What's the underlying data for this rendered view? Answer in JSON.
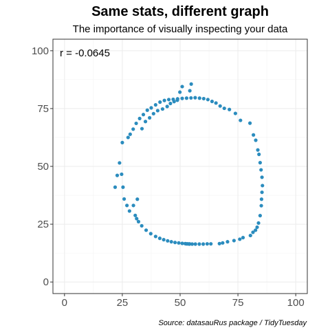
{
  "title": "Same stats, different graph",
  "subtitle": "The importance of visually inspecting your data",
  "caption": "Source: datasauRus package / TidyTuesday",
  "annotation": "r = -0.0645",
  "colors": {
    "point": "#2b8cbe",
    "annotation_text": "#000000"
  },
  "chart_data": {
    "type": "scatter",
    "title": "Same stats, different graph",
    "subtitle": "The importance of visually inspecting your data",
    "xlabel": "",
    "ylabel": "",
    "xlim": [
      -5,
      105
    ],
    "ylim": [
      -5,
      105
    ],
    "x_ticks": [
      0,
      25,
      50,
      75,
      100
    ],
    "y_ticks": [
      0,
      25,
      50,
      75,
      100
    ],
    "grid": true,
    "legend": "none",
    "series": [
      {
        "x": [
          53.4,
          52.2,
          50.9,
          49.4,
          47.8,
          46.2,
          44.6,
          42.9,
          41.2,
          39.4,
          37.3,
          35.3,
          33.4,
          32.0,
          31.2,
          30.6,
          27.0,
          25.8,
          25.3,
          24.7,
          23.8,
          22.8,
          21.9,
          25.0,
          27.5,
          28.4,
          29.7,
          31.0,
          32.5,
          34.1,
          35.8,
          37.5,
          39.4,
          41.3,
          43.2,
          45.1,
          47.0,
          48.9,
          50.9,
          52.8,
          54.7,
          56.5,
          58.4,
          60.2,
          62.0,
          63.8,
          65.5,
          67.3,
          69.1,
          71.3,
          73.9,
          76.1,
          80.2,
          81.7,
          82.7,
          83.6,
          84.1,
          84.6,
          85.0,
          85.4,
          85.6,
          85.4,
          85.2,
          85.1,
          84.6,
          83.9,
          83.3,
          82.6,
          81.5,
          80.4,
          77.2,
          75.8,
          73.3,
          70.5,
          68.4,
          67.0,
          63.3,
          61.7,
          60.0,
          58.3,
          56.6,
          55.2,
          54.0,
          53.0,
          54.1,
          52.6,
          54.2,
          54.8,
          50.9,
          49.9,
          48.8,
          47.4,
          45.8,
          44.4,
          42.4,
          40.3,
          38.5,
          36.8,
          35.0,
          33.5,
          31.5,
          29.8,
          28.1
        ],
        "y": [
          16.5,
          16.6,
          16.7,
          16.9,
          17.1,
          17.4,
          17.8,
          18.3,
          18.9,
          19.7,
          20.9,
          22.4,
          24.3,
          26.1,
          27.4,
          28.8,
          33.1,
          35.9,
          41.0,
          46.6,
          51.5,
          46.1,
          41.0,
          60.3,
          62.5,
          63.9,
          66.1,
          68.6,
          70.7,
          72.4,
          74.3,
          75.3,
          76.6,
          77.8,
          78.5,
          78.9,
          79.0,
          79.2,
          79.4,
          79.5,
          79.6,
          79.7,
          79.5,
          79.3,
          78.9,
          78.1,
          77.4,
          76.1,
          75.1,
          74.6,
          72.9,
          69.9,
          68.7,
          63.6,
          61.3,
          57.1,
          55.2,
          51.6,
          48.5,
          45.3,
          41.7,
          38.8,
          35.8,
          33.0,
          28.7,
          25.5,
          23.7,
          22.4,
          21.5,
          20.1,
          19.2,
          18.5,
          17.9,
          17.4,
          16.9,
          16.6,
          16.5,
          16.5,
          16.4,
          16.4,
          16.4,
          16.4,
          16.4,
          16.5,
          16.5,
          16.5,
          82.7,
          85.6,
          84.5,
          82.1,
          78.6,
          78.0,
          77.2,
          75.9,
          74.8,
          74.1,
          72.8,
          71.0,
          69.4,
          66.3,
          35.8,
          33.1,
          30.7
        ]
      }
    ]
  }
}
